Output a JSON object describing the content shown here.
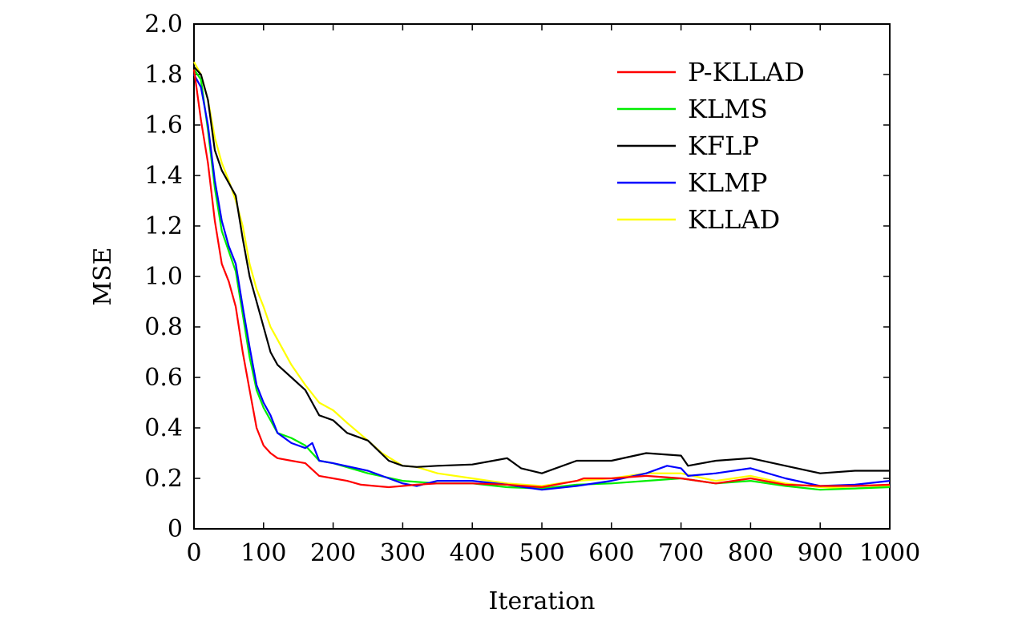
{
  "chart_data": {
    "type": "line",
    "title": "",
    "xlabel": "Iteration",
    "ylabel": "MSE",
    "xlim": [
      0,
      1000
    ],
    "ylim": [
      0,
      2.0
    ],
    "xticks": [
      0,
      100,
      200,
      300,
      400,
      500,
      600,
      700,
      800,
      900,
      1000
    ],
    "xtick_labels": [
      "0",
      "100",
      "200",
      "300",
      "400",
      "500",
      "600",
      "700",
      "800",
      "900",
      "1000"
    ],
    "yticks": [
      0,
      0.2,
      0.4,
      0.6,
      0.8,
      1.0,
      1.2,
      1.4,
      1.6,
      1.8,
      2.0
    ],
    "ytick_labels": [
      "0",
      "0.2",
      "0.4",
      "0.6",
      "0.8",
      "1.0",
      "1.2",
      "1.4",
      "1.6",
      "1.8",
      "2.0"
    ],
    "grid": false,
    "legend_position": "top-right",
    "series": [
      {
        "name": "P-KLLAD",
        "color": "#ff0000",
        "x": [
          0,
          10,
          20,
          30,
          40,
          50,
          60,
          70,
          80,
          90,
          100,
          110,
          120,
          140,
          160,
          180,
          200,
          220,
          240,
          260,
          280,
          300,
          320,
          350,
          400,
          450,
          500,
          550,
          560,
          600,
          650,
          700,
          750,
          800,
          850,
          900,
          950,
          1000
        ],
        "y": [
          1.82,
          1.62,
          1.45,
          1.22,
          1.05,
          0.98,
          0.88,
          0.7,
          0.55,
          0.4,
          0.33,
          0.3,
          0.28,
          0.27,
          0.26,
          0.21,
          0.2,
          0.19,
          0.175,
          0.17,
          0.165,
          0.17,
          0.175,
          0.18,
          0.18,
          0.175,
          0.165,
          0.19,
          0.2,
          0.2,
          0.21,
          0.2,
          0.18,
          0.2,
          0.175,
          0.17,
          0.17,
          0.175
        ]
      },
      {
        "name": "KLMS",
        "color": "#00ee00",
        "x": [
          0,
          10,
          20,
          30,
          40,
          50,
          60,
          70,
          80,
          90,
          100,
          110,
          120,
          140,
          160,
          180,
          200,
          250,
          300,
          350,
          400,
          450,
          500,
          550,
          600,
          650,
          700,
          750,
          800,
          850,
          900,
          950,
          1000
        ],
        "y": [
          1.82,
          1.78,
          1.58,
          1.35,
          1.18,
          1.1,
          1.02,
          0.85,
          0.68,
          0.55,
          0.48,
          0.43,
          0.38,
          0.36,
          0.33,
          0.27,
          0.26,
          0.22,
          0.19,
          0.18,
          0.18,
          0.165,
          0.16,
          0.175,
          0.18,
          0.19,
          0.2,
          0.18,
          0.19,
          0.17,
          0.155,
          0.16,
          0.165
        ]
      },
      {
        "name": "KFLP",
        "color": "#000000",
        "x": [
          0,
          10,
          20,
          30,
          40,
          50,
          60,
          70,
          80,
          90,
          100,
          110,
          120,
          140,
          160,
          180,
          200,
          220,
          250,
          280,
          300,
          320,
          350,
          400,
          430,
          450,
          470,
          500,
          550,
          600,
          650,
          700,
          710,
          750,
          800,
          850,
          900,
          950,
          1000
        ],
        "y": [
          1.83,
          1.8,
          1.7,
          1.5,
          1.42,
          1.37,
          1.32,
          1.15,
          1.0,
          0.9,
          0.8,
          0.7,
          0.65,
          0.6,
          0.55,
          0.45,
          0.43,
          0.38,
          0.35,
          0.27,
          0.25,
          0.245,
          0.25,
          0.255,
          0.27,
          0.28,
          0.24,
          0.22,
          0.27,
          0.27,
          0.3,
          0.29,
          0.25,
          0.27,
          0.28,
          0.25,
          0.22,
          0.23,
          0.23
        ]
      },
      {
        "name": "KLMP",
        "color": "#0000ff",
        "x": [
          0,
          10,
          20,
          30,
          40,
          50,
          60,
          70,
          80,
          90,
          100,
          110,
          120,
          140,
          160,
          170,
          180,
          200,
          250,
          300,
          320,
          350,
          400,
          450,
          500,
          550,
          600,
          650,
          680,
          700,
          710,
          750,
          800,
          850,
          900,
          950,
          1000
        ],
        "y": [
          1.8,
          1.75,
          1.6,
          1.38,
          1.22,
          1.12,
          1.05,
          0.88,
          0.72,
          0.57,
          0.5,
          0.45,
          0.38,
          0.34,
          0.32,
          0.34,
          0.27,
          0.26,
          0.23,
          0.18,
          0.17,
          0.19,
          0.19,
          0.175,
          0.155,
          0.17,
          0.19,
          0.22,
          0.25,
          0.24,
          0.21,
          0.22,
          0.24,
          0.2,
          0.17,
          0.175,
          0.19
        ]
      },
      {
        "name": "KLLAD",
        "color": "#ffff00",
        "x": [
          0,
          10,
          20,
          30,
          40,
          50,
          60,
          70,
          80,
          90,
          100,
          110,
          120,
          140,
          160,
          180,
          200,
          220,
          250,
          270,
          300,
          320,
          350,
          400,
          450,
          500,
          550,
          600,
          650,
          700,
          750,
          800,
          850,
          900,
          950,
          1000
        ],
        "y": [
          1.85,
          1.8,
          1.7,
          1.55,
          1.45,
          1.38,
          1.3,
          1.2,
          1.05,
          0.95,
          0.88,
          0.8,
          0.75,
          0.65,
          0.57,
          0.5,
          0.47,
          0.42,
          0.35,
          0.3,
          0.25,
          0.245,
          0.22,
          0.2,
          0.18,
          0.17,
          0.19,
          0.2,
          0.22,
          0.22,
          0.19,
          0.21,
          0.18,
          0.165,
          0.16,
          0.17
        ]
      }
    ]
  }
}
